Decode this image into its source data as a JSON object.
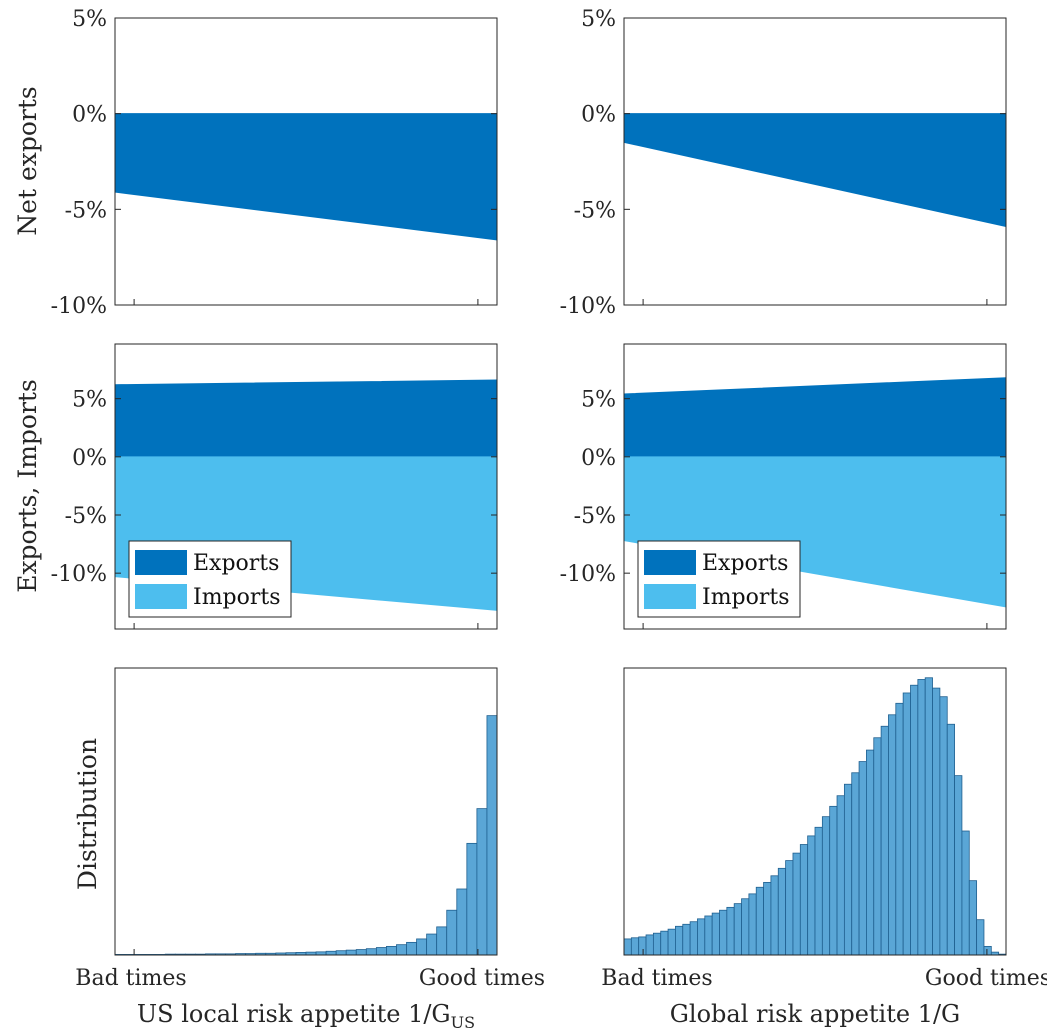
{
  "colors": {
    "exports": "#0072BD",
    "imports": "#4DBEEE",
    "hist_fill": "#5AA6D6",
    "hist_edge": "#1F5F8F",
    "axis": "#262626"
  },
  "row_labels": {
    "net": "Net exports",
    "exim": "Exports, Imports",
    "dist": "Distribution"
  },
  "x_axis": {
    "tick_left": "Bad times",
    "tick_right": "Good times",
    "left_label": "US local risk appetite 1/G",
    "left_label_sub": "US",
    "right_label": "Global risk appetite 1/G"
  },
  "legend": {
    "exports": "Exports",
    "imports": "Imports"
  },
  "chart_data": [
    {
      "id": "net_left",
      "type": "area",
      "yticks": [
        "5%",
        "0%",
        "-5%",
        "-10%"
      ],
      "ylim": [
        -10,
        5
      ],
      "series": [
        {
          "values_start": -4.1,
          "values_end": -6.6
        }
      ]
    },
    {
      "id": "net_right",
      "type": "area",
      "yticks": [
        "5%",
        "0%",
        "-5%",
        "-10%"
      ],
      "ylim": [
        -10,
        5
      ],
      "series": [
        {
          "values_start": -1.5,
          "values_end": -5.9
        }
      ]
    },
    {
      "id": "exim_left",
      "type": "area",
      "yticks": [
        "5%",
        "0%",
        "-5%",
        "-10%"
      ],
      "ylim": [
        -14.8,
        9.7
      ],
      "series": [
        {
          "name": "Exports",
          "values_start": 6.2,
          "values_end": 6.6
        },
        {
          "name": "Imports",
          "values_start": -10.3,
          "values_end": -13.2
        }
      ]
    },
    {
      "id": "exim_right",
      "type": "area",
      "yticks": [
        "5%",
        "0%",
        "-5%",
        "-10%"
      ],
      "ylim": [
        -14.8,
        9.7
      ],
      "series": [
        {
          "name": "Exports",
          "values_start": 5.4,
          "values_end": 6.8
        },
        {
          "name": "Imports",
          "values_start": -7.2,
          "values_end": -12.9
        }
      ]
    },
    {
      "id": "dist_left",
      "type": "bar",
      "values": [
        0.2,
        0.2,
        0.2,
        0.2,
        0.2,
        0.3,
        0.3,
        0.3,
        0.3,
        0.4,
        0.4,
        0.4,
        0.5,
        0.5,
        0.6,
        0.6,
        0.7,
        0.8,
        0.9,
        1.0,
        1.1,
        1.3,
        1.5,
        1.7,
        1.9,
        2.2,
        2.6,
        3.0,
        3.6,
        4.4,
        5.6,
        7.3,
        9.8,
        15.6,
        23.0,
        38.9,
        51.0,
        83.4
      ]
    },
    {
      "id": "dist_right",
      "type": "bar",
      "values": [
        5.6,
        6.0,
        6.3,
        7.0,
        7.6,
        8.3,
        9.0,
        10.0,
        10.7,
        11.6,
        12.6,
        13.6,
        14.6,
        15.6,
        16.6,
        17.9,
        19.6,
        21.3,
        23.6,
        25.3,
        27.6,
        30.2,
        32.9,
        35.5,
        38.5,
        41.5,
        44.5,
        48.2,
        51.8,
        55.5,
        59.5,
        63.5,
        67.4,
        71.4,
        75.7,
        79.7,
        83.7,
        87.7,
        91.3,
        94.0,
        96.0,
        96.6,
        93.0,
        90.0,
        80.4,
        62.5,
        43.2,
        25.9,
        12.3,
        3.0,
        1.0,
        0.3
      ]
    }
  ]
}
